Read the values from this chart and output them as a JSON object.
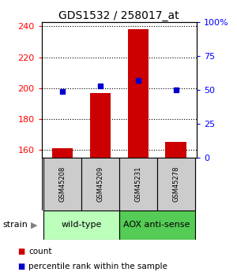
{
  "title": "GDS1532 / 258017_at",
  "samples": [
    "GSM45208",
    "GSM45209",
    "GSM45231",
    "GSM45278"
  ],
  "counts": [
    161,
    197,
    238,
    165
  ],
  "percentiles": [
    49,
    53,
    57,
    50
  ],
  "ylim_left": [
    155,
    243
  ],
  "ylim_right": [
    0,
    100
  ],
  "yticks_left": [
    160,
    180,
    200,
    220,
    240
  ],
  "yticks_right": [
    0,
    25,
    50,
    75,
    100
  ],
  "ytick_labels_right": [
    "0",
    "25",
    "50",
    "75",
    "100%"
  ],
  "groups": [
    {
      "label": "wild-type",
      "indices": [
        0,
        1
      ],
      "color": "#bbffbb"
    },
    {
      "label": "AOX anti-sense",
      "indices": [
        2,
        3
      ],
      "color": "#55cc55"
    }
  ],
  "bar_color": "#cc0000",
  "dot_color": "#0000cc",
  "bar_width": 0.55,
  "sample_box_color": "#cccccc",
  "background_color": "#ffffff",
  "title_fontsize": 10,
  "tick_fontsize": 8,
  "legend_fontsize": 7.5,
  "strain_label": "strain",
  "arrow_char": "▶",
  "legend_count": "count",
  "legend_percentile": "percentile rank within the sample"
}
